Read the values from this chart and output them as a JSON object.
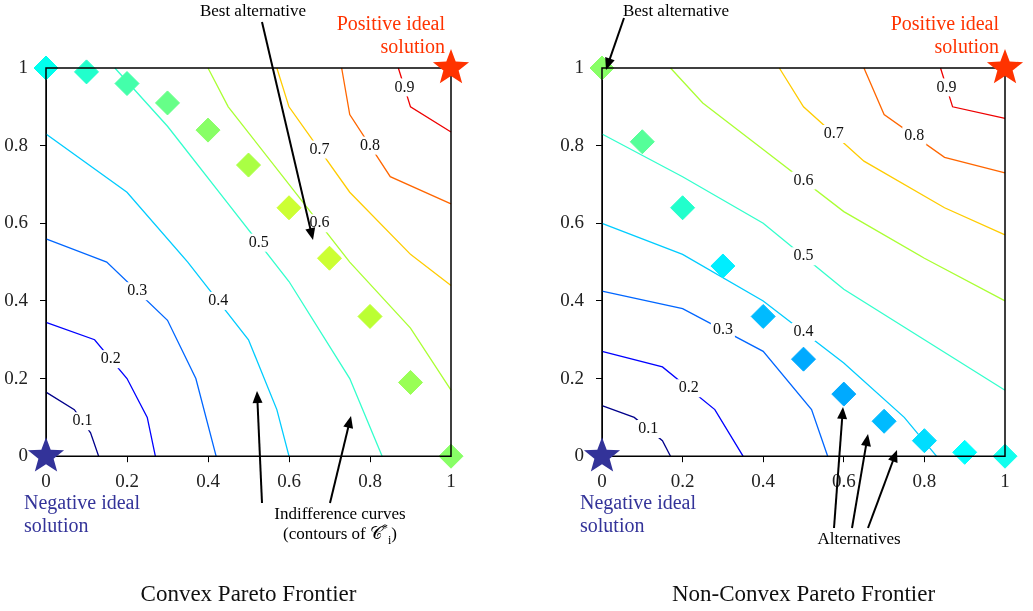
{
  "chart_data": [
    {
      "type": "line",
      "title": "Convex Pareto Frontier",
      "xlim": [
        0,
        1
      ],
      "ylim": [
        0,
        1
      ],
      "xticks": [
        0,
        0.2,
        0.4,
        0.6,
        0.8,
        1
      ],
      "yticks": [
        0,
        0.2,
        0.4,
        0.6,
        0.8,
        1
      ],
      "grid": false,
      "legend": false,
      "series": [
        {
          "name": "0.1",
          "color": "#00008b",
          "marker": "none",
          "x": [
            0,
            0.07,
            0.11,
            0.13
          ],
          "values": [
            0.165,
            0.12,
            0.06,
            0
          ]
        },
        {
          "name": "0.2",
          "color": "#0000ff",
          "marker": "none",
          "x": [
            0,
            0.12,
            0.2,
            0.25,
            0.27
          ],
          "values": [
            0.345,
            0.3,
            0.2,
            0.1,
            0
          ]
        },
        {
          "name": "0.3",
          "color": "#0066ff",
          "marker": "none",
          "x": [
            0,
            0.15,
            0.3,
            0.37,
            0.42
          ],
          "values": [
            0.56,
            0.5,
            0.35,
            0.2,
            0
          ]
        },
        {
          "name": "0.4",
          "color": "#00ccff",
          "marker": "none",
          "x": [
            0,
            0.2,
            0.35,
            0.5,
            0.57,
            0.6
          ],
          "values": [
            0.83,
            0.68,
            0.5,
            0.3,
            0.12,
            0
          ]
        },
        {
          "name": "0.5",
          "color": "#33ffcc",
          "marker": "none",
          "x": [
            0.17,
            0.3,
            0.45,
            0.6,
            0.75,
            0.83
          ],
          "values": [
            1,
            0.85,
            0.65,
            0.45,
            0.2,
            0
          ]
        },
        {
          "name": "0.6",
          "color": "#aaff33",
          "marker": "none",
          "x": [
            0.4,
            0.45,
            0.6,
            0.75,
            0.9,
            1
          ],
          "values": [
            1,
            0.9,
            0.7,
            0.5,
            0.33,
            0.17
          ]
        },
        {
          "name": "0.7",
          "color": "#ffcc00",
          "marker": "none",
          "x": [
            0.57,
            0.6,
            0.75,
            0.9,
            1
          ],
          "values": [
            1,
            0.9,
            0.68,
            0.52,
            0.44
          ]
        },
        {
          "name": "0.8",
          "color": "#ff6600",
          "marker": "none",
          "x": [
            0.73,
            0.75,
            0.85,
            1
          ],
          "values": [
            1,
            0.88,
            0.72,
            0.65
          ]
        },
        {
          "name": "0.9",
          "color": "#ee0000",
          "marker": "none",
          "x": [
            0.87,
            0.9,
            1
          ],
          "values": [
            1,
            0.9,
            0.835
          ]
        },
        {
          "type": "scatter",
          "marker": "diamond",
          "x": [
            0,
            0.1,
            0.2,
            0.3,
            0.4,
            0.5,
            0.6,
            0.7,
            0.8,
            0.9,
            1
          ],
          "values": [
            1,
            0.99,
            0.96,
            0.91,
            0.84,
            0.75,
            0.64,
            0.51,
            0.36,
            0.19,
            0
          ],
          "colors": [
            "#00ffee",
            "#22ffcc",
            "#44ffaa",
            "#66ff88",
            "#88ff66",
            "#aaff44",
            "#ccff33",
            "#ccff33",
            "#bbff33",
            "#99ff55",
            "#88ff66"
          ]
        },
        {
          "type": "scatter",
          "name": "Positive ideal solution",
          "color": "#ff3300",
          "marker": "star",
          "x": [
            1
          ],
          "values": [
            1
          ]
        },
        {
          "type": "scatter",
          "name": "Negative ideal solution",
          "color": "#333399",
          "marker": "star",
          "x": [
            0
          ],
          "values": [
            0
          ]
        }
      ],
      "annotations": [
        "Best alternative",
        "Indifference curves (contours of 𝒞$^{*}$$_{i}$)"
      ]
    },
    {
      "type": "line",
      "title": "Non-Convex Pareto Frontier",
      "xlim": [
        0,
        1
      ],
      "ylim": [
        0,
        1
      ],
      "xticks": [
        0,
        0.2,
        0.4,
        0.6,
        0.8,
        1
      ],
      "yticks": [
        0,
        0.2,
        0.4,
        0.6,
        0.8,
        1
      ],
      "grid": false,
      "legend": false,
      "series": [
        {
          "name": "0.1",
          "color": "#00008b",
          "marker": "none",
          "x": [
            0,
            0.08,
            0.15,
            0.17
          ],
          "values": [
            0.13,
            0.1,
            0.04,
            0
          ]
        },
        {
          "name": "0.2",
          "color": "#0000ff",
          "marker": "none",
          "x": [
            0,
            0.15,
            0.28,
            0.35
          ],
          "values": [
            0.27,
            0.23,
            0.12,
            0
          ]
        },
        {
          "name": "0.3",
          "color": "#0066ff",
          "marker": "none",
          "x": [
            0,
            0.2,
            0.4,
            0.52,
            0.56
          ],
          "values": [
            0.425,
            0.38,
            0.27,
            0.12,
            0
          ]
        },
        {
          "name": "0.4",
          "color": "#00ccff",
          "marker": "none",
          "x": [
            0,
            0.2,
            0.4,
            0.6,
            0.75,
            0.83
          ],
          "values": [
            0.6,
            0.52,
            0.4,
            0.24,
            0.1,
            0
          ]
        },
        {
          "name": "0.5",
          "color": "#33ffcc",
          "marker": "none",
          "x": [
            0,
            0.2,
            0.4,
            0.6,
            0.8,
            1
          ],
          "values": [
            0.83,
            0.72,
            0.6,
            0.43,
            0.3,
            0.17
          ]
        },
        {
          "name": "0.6",
          "color": "#aaff33",
          "marker": "none",
          "x": [
            0.17,
            0.25,
            0.4,
            0.6,
            0.8,
            1
          ],
          "values": [
            1,
            0.91,
            0.79,
            0.63,
            0.51,
            0.4
          ]
        },
        {
          "name": "0.7",
          "color": "#ffcc00",
          "marker": "none",
          "x": [
            0.44,
            0.5,
            0.65,
            0.85,
            1
          ],
          "values": [
            1,
            0.9,
            0.76,
            0.64,
            0.57
          ]
        },
        {
          "name": "0.8",
          "color": "#ff6600",
          "marker": "none",
          "x": [
            0.65,
            0.7,
            0.85,
            1
          ],
          "values": [
            1,
            0.88,
            0.77,
            0.73
          ]
        },
        {
          "name": "0.9",
          "color": "#ee0000",
          "marker": "none",
          "x": [
            0.84,
            0.87,
            1
          ],
          "values": [
            1,
            0.9,
            0.87
          ]
        },
        {
          "type": "scatter",
          "marker": "diamond",
          "x": [
            0,
            0.1,
            0.2,
            0.3,
            0.4,
            0.5,
            0.6,
            0.7,
            0.8,
            0.9,
            1
          ],
          "values": [
            1,
            0.81,
            0.64,
            0.49,
            0.36,
            0.25,
            0.16,
            0.09,
            0.04,
            0.01,
            0
          ],
          "colors": [
            "#88ff66",
            "#55ff99",
            "#22ffcc",
            "#00eeff",
            "#00bbff",
            "#00aaff",
            "#00aaff",
            "#00bbff",
            "#00ddff",
            "#00ffff",
            "#11ffee"
          ]
        },
        {
          "type": "scatter",
          "name": "Positive ideal solution",
          "color": "#ff3300",
          "marker": "star",
          "x": [
            1
          ],
          "values": [
            1
          ]
        },
        {
          "type": "scatter",
          "name": "Negative ideal solution",
          "color": "#333399",
          "marker": "star",
          "x": [
            0
          ],
          "values": [
            0
          ]
        }
      ],
      "annotations": [
        "Best alternative",
        "Alternatives"
      ]
    }
  ]
}
